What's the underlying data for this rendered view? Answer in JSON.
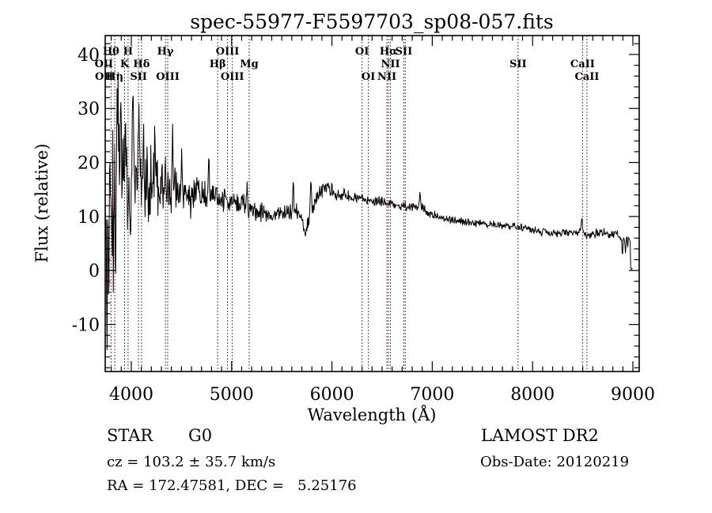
{
  "figure": {
    "title": "spec-55977-F5597703_sp08-057.fits",
    "xlabel": "Wavelength (Å)",
    "ylabel": "Flux (relative)",
    "annotations": {
      "class": "STAR",
      "subclass": "G0",
      "cz": "cz = 103.2 ± 35.7 km/s",
      "ra_dec": "RA = 172.47581, DEC =   5.25176",
      "survey": "LAMOST DR2",
      "obs_date": "Obs-Date: 20120219"
    },
    "colors": {
      "background": "#ffffff",
      "spectrum": "#000000",
      "line_marker": "#6b3939",
      "text": "#000000",
      "axis": "#000000"
    }
  },
  "chart_data": {
    "type": "line",
    "title": "spec-55977-F5597703_sp08-057.fits",
    "xlabel": "Wavelength (Å)",
    "ylabel": "Flux (relative)",
    "series_name": "spectrum",
    "grid": false,
    "xlim": [
      3740,
      9063
    ],
    "ylim": [
      -18.7,
      43.5
    ],
    "xticks": [
      4000,
      5000,
      6000,
      7000,
      8000,
      9000
    ],
    "yticks": [
      -10,
      0,
      10,
      20,
      30,
      40
    ],
    "x_minor_step": 100,
    "y_minor_step": 2,
    "noise_seed": 9,
    "spectral_lines": [
      {
        "label": "OII",
        "wavelength": 3727,
        "row": 2
      },
      {
        "label": "OII",
        "wavelength": 3730,
        "row": 3
      },
      {
        "label": "Hθ",
        "wavelength": 3798,
        "row": 1
      },
      {
        "label": "Hη",
        "wavelength": 3835,
        "row": 3
      },
      {
        "label": "K",
        "wavelength": 3933,
        "row": 2
      },
      {
        "label": "H",
        "wavelength": 3968,
        "row": 1
      },
      {
        "label": "SII",
        "wavelength": 4072,
        "row": 3
      },
      {
        "label": "Hδ",
        "wavelength": 4102,
        "row": 2
      },
      {
        "label": "Hγ",
        "wavelength": 4340,
        "row": 1
      },
      {
        "label": "OIII",
        "wavelength": 4363,
        "row": 3
      },
      {
        "label": "Hβ",
        "wavelength": 4861,
        "row": 2
      },
      {
        "label": "OIII",
        "wavelength": 4959,
        "row": 1
      },
      {
        "label": "OIII",
        "wavelength": 5007,
        "row": 3
      },
      {
        "label": "Mg",
        "wavelength": 5175,
        "row": 2
      },
      {
        "label": "OI",
        "wavelength": 6300,
        "row": 1
      },
      {
        "label": "OI",
        "wavelength": 6363,
        "row": 3
      },
      {
        "label": "NII",
        "wavelength": 6548,
        "row": 3
      },
      {
        "label": "Hα",
        "wavelength": 6563,
        "row": 1
      },
      {
        "label": "NII",
        "wavelength": 6583,
        "row": 2
      },
      {
        "label": "SII",
        "wavelength": 6716,
        "row": 1
      },
      {
        "label": "",
        "wavelength": 6731,
        "row": 1
      },
      {
        "label": "SII",
        "wavelength": 7855,
        "row": 2
      },
      {
        "label": "CaII",
        "wavelength": 8498,
        "row": 2
      },
      {
        "label": "CaII",
        "wavelength": 8542,
        "row": 3
      }
    ],
    "continuum_points": [
      [
        3740,
        12
      ],
      [
        3768,
        9.5
      ],
      [
        3795,
        13
      ],
      [
        3850,
        13.5
      ],
      [
        3900,
        14.5
      ],
      [
        3950,
        15.5
      ],
      [
        4000,
        15.2
      ],
      [
        4100,
        16.5
      ],
      [
        4200,
        16.2
      ],
      [
        4300,
        15.6
      ],
      [
        4400,
        15.0
      ],
      [
        4500,
        14.5
      ],
      [
        4600,
        14.2
      ],
      [
        4700,
        14.0
      ],
      [
        4800,
        13.8
      ],
      [
        4900,
        13.2
      ],
      [
        5000,
        12.8
      ],
      [
        5100,
        12.2
      ],
      [
        5200,
        11.4
      ],
      [
        5300,
        10.7
      ],
      [
        5400,
        10.5
      ],
      [
        5500,
        10.8
      ],
      [
        5600,
        11.0
      ],
      [
        5680,
        10.6
      ],
      [
        5735,
        7.0
      ],
      [
        5770,
        9.6
      ],
      [
        5820,
        11.8
      ],
      [
        5870,
        14.2
      ],
      [
        5920,
        15.3
      ],
      [
        5960,
        15.4
      ],
      [
        6000,
        14.6
      ],
      [
        6050,
        13.9
      ],
      [
        6150,
        13.7
      ],
      [
        6250,
        13.4
      ],
      [
        6350,
        13.1
      ],
      [
        6450,
        12.8
      ],
      [
        6563,
        12.4
      ],
      [
        6650,
        12.1
      ],
      [
        6750,
        11.8
      ],
      [
        6880,
        11.8
      ],
      [
        6950,
        10.9
      ],
      [
        7000,
        10.3
      ],
      [
        7100,
        9.8
      ],
      [
        7200,
        9.4
      ],
      [
        7300,
        9.1
      ],
      [
        7400,
        8.9
      ],
      [
        7500,
        8.7
      ],
      [
        7600,
        8.5
      ],
      [
        7700,
        8.4
      ],
      [
        7800,
        8.2
      ],
      [
        7900,
        8.0
      ],
      [
        8000,
        7.6
      ],
      [
        8100,
        7.2
      ],
      [
        8200,
        6.9
      ],
      [
        8300,
        6.9
      ],
      [
        8400,
        6.9
      ],
      [
        8470,
        7.3
      ],
      [
        8530,
        6.5
      ],
      [
        8580,
        6.4
      ],
      [
        8640,
        7.0
      ],
      [
        8700,
        7.0
      ],
      [
        8780,
        6.8
      ],
      [
        8840,
        6.6
      ],
      [
        8870,
        6.3
      ],
      [
        8905,
        5.6
      ],
      [
        8935,
        5.8
      ],
      [
        8960,
        6.2
      ],
      [
        8972,
        5.8
      ],
      [
        8978,
        0.4
      ],
      [
        9000,
        0.3
      ]
    ],
    "noise_halfrange_points": [
      [
        3740,
        27
      ],
      [
        3770,
        26
      ],
      [
        3800,
        22
      ],
      [
        3840,
        19
      ],
      [
        3880,
        16
      ],
      [
        3920,
        13
      ],
      [
        3970,
        11.5
      ],
      [
        4020,
        10
      ],
      [
        4080,
        9
      ],
      [
        4150,
        8
      ],
      [
        4250,
        6.5
      ],
      [
        4350,
        5.5
      ],
      [
        4450,
        4.3
      ],
      [
        4550,
        3.6
      ],
      [
        4650,
        3.1
      ],
      [
        4750,
        2.8
      ],
      [
        4850,
        2.5
      ],
      [
        4950,
        2.3
      ],
      [
        5100,
        2.0
      ],
      [
        5300,
        1.8
      ],
      [
        5500,
        1.7
      ],
      [
        5700,
        1.5
      ],
      [
        5900,
        1.5
      ],
      [
        6100,
        1.3
      ],
      [
        6300,
        1.1
      ],
      [
        6563,
        1.0
      ],
      [
        6800,
        0.9
      ],
      [
        7100,
        0.85
      ],
      [
        7500,
        0.8
      ],
      [
        8000,
        0.75
      ],
      [
        8400,
        0.8
      ],
      [
        8700,
        0.9
      ],
      [
        8900,
        1.0
      ],
      [
        8970,
        0.6
      ],
      [
        9000,
        0.2
      ]
    ],
    "features": [
      [
        3755,
        -22,
        6
      ],
      [
        3775,
        -16,
        5
      ],
      [
        3845,
        -11,
        5
      ],
      [
        3862,
        20,
        6
      ],
      [
        3890,
        10,
        5
      ],
      [
        3942,
        15,
        6
      ],
      [
        3960,
        -7,
        5
      ],
      [
        4016,
        13,
        6
      ],
      [
        4080,
        11,
        5
      ],
      [
        4122,
        9,
        5
      ],
      [
        4180,
        -6,
        5
      ],
      [
        4237,
        8,
        5
      ],
      [
        4282,
        -5,
        5
      ],
      [
        4412,
        10,
        5
      ],
      [
        4500,
        6,
        5
      ],
      [
        4590,
        -4,
        5
      ],
      [
        4773,
        7.5,
        5
      ],
      [
        5151,
        3.5,
        5
      ],
      [
        5615,
        5,
        5
      ],
      [
        5790,
        6.5,
        5
      ],
      [
        6121,
        2,
        5
      ],
      [
        6878,
        2.3,
        5
      ],
      [
        8492,
        2.8,
        5
      ],
      [
        8895,
        -2.4,
        5
      ],
      [
        8925,
        -2.6,
        5
      ],
      [
        8948,
        -1.8,
        4
      ]
    ]
  }
}
